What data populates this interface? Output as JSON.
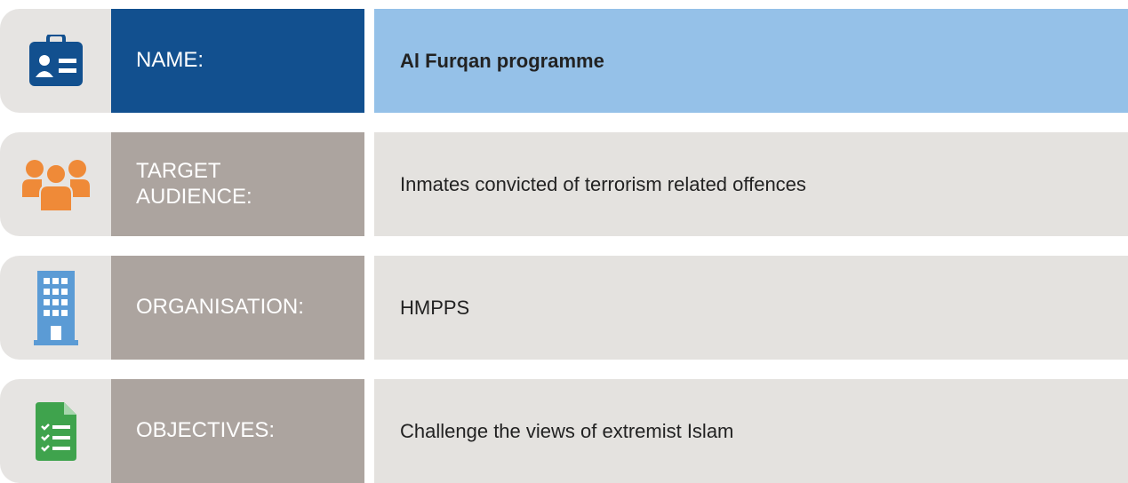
{
  "rows": [
    {
      "label": "NAME:",
      "value": "Al Furqan programme"
    },
    {
      "label": "TARGET\nAUDIENCE:",
      "value": "Inmates convicted of terrorism related offences"
    },
    {
      "label": "ORGANISATION:",
      "value": "HMPPS"
    },
    {
      "label": "OBJECTIVES:",
      "value": "Challenge the views of extremist Islam"
    }
  ]
}
